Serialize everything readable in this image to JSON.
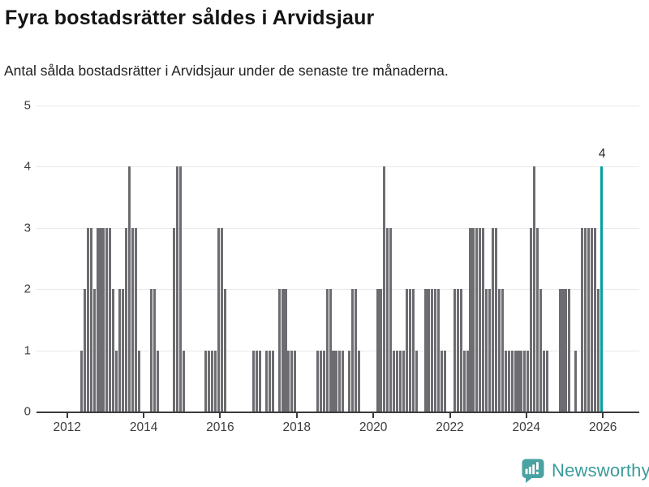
{
  "header": {
    "title": "Fyra bostadsrätter såldes i Arvidsjaur",
    "subtitle": "Antal sålda bostadsrätter i Arvidsjaur under de senaste tre månaderna."
  },
  "chart_data": {
    "type": "bar",
    "title": "Fyra bostadsrätter såldes i Arvidsjaur",
    "subtitle": "Antal sålda bostadsrätter i Arvidsjaur under de senaste tre månaderna.",
    "period": "monthly",
    "x_start": "2012-01",
    "x_end": "2025-12",
    "values": [
      0,
      0,
      0,
      0,
      1,
      2,
      3,
      3,
      2,
      3,
      3,
      3,
      3,
      3,
      2,
      1,
      2,
      2,
      3,
      4,
      3,
      3,
      1,
      0,
      0,
      0,
      2,
      2,
      1,
      0,
      0,
      0,
      0,
      3,
      4,
      4,
      1,
      0,
      0,
      0,
      0,
      0,
      0,
      1,
      1,
      1,
      1,
      3,
      3,
      2,
      0,
      0,
      0,
      0,
      0,
      0,
      0,
      0,
      1,
      1,
      1,
      0,
      1,
      1,
      1,
      0,
      2,
      2,
      2,
      1,
      1,
      1,
      0,
      0,
      0,
      0,
      0,
      0,
      1,
      1,
      1,
      2,
      2,
      1,
      1,
      1,
      1,
      0,
      1,
      2,
      2,
      1,
      0,
      0,
      0,
      0,
      0,
      2,
      2,
      4,
      3,
      3,
      1,
      1,
      1,
      1,
      2,
      2,
      2,
      1,
      0,
      0,
      2,
      2,
      2,
      2,
      2,
      1,
      1,
      0,
      0,
      2,
      2,
      2,
      1,
      1,
      3,
      3,
      3,
      3,
      3,
      2,
      2,
      3,
      3,
      2,
      2,
      1,
      1,
      1,
      1,
      1,
      1,
      1,
      1,
      3,
      4,
      3,
      2,
      1,
      1,
      0,
      0,
      0,
      2,
      2,
      2,
      2,
      0,
      1,
      0,
      3,
      3,
      3,
      3,
      3,
      2,
      4
    ],
    "ylim": [
      0,
      5
    ],
    "yticks": [
      0,
      1,
      2,
      3,
      4,
      5
    ],
    "xticks": [
      "2012",
      "2014",
      "2016",
      "2018",
      "2020",
      "2022",
      "2024",
      "2026"
    ],
    "xlim_years": [
      2011.2,
      2026.95
    ],
    "grid": "horizontal",
    "legend": "none",
    "bar_color": "#6c6c71",
    "highlight": {
      "index": 167,
      "value": 4,
      "label": "4",
      "color": "#00a1a0"
    }
  },
  "footer": {
    "brand": "Newsworthy",
    "brand_color": "#3a9b9b",
    "icon": "newsworthy-speech-bubble-chart-icon",
    "icon_color": "#4aa2a2"
  }
}
